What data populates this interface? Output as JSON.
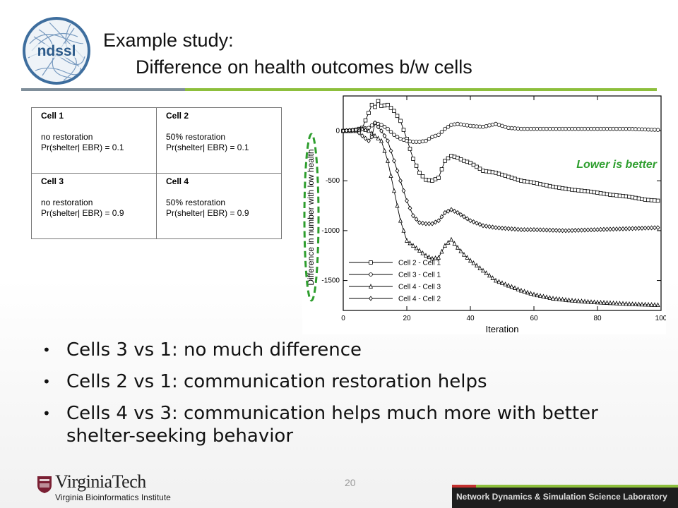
{
  "logo": {
    "text": "ndssl",
    "color": "#3e6e9e"
  },
  "title": {
    "line1": "Example study:",
    "line2": "Difference on health outcomes b/w cells"
  },
  "rule_colors": {
    "grey": "#7f8e9a",
    "green": "#8dbf3c"
  },
  "table": [
    [
      {
        "header": "Cell 1",
        "line1": "no restoration",
        "line2": "Pr(shelter| EBR) = 0.1"
      },
      {
        "header": "Cell 2",
        "line1": "50% restoration",
        "line2": "Pr(shelter| EBR) = 0.1"
      }
    ],
    [
      {
        "header": "Cell 3",
        "line1": "no restoration",
        "line2": "Pr(shelter| EBR) = 0.9"
      },
      {
        "header": "Cell 4",
        "line1": "50% restoration",
        "line2": "Pr(shelter| EBR) = 0.9"
      }
    ]
  ],
  "chart_data": {
    "type": "line",
    "xlabel": "Iteration",
    "ylabel": "Difference in number with low health",
    "xlim": [
      0,
      100
    ],
    "ylim": [
      -1800,
      350
    ],
    "xticks": [
      0,
      20,
      40,
      60,
      80,
      100
    ],
    "yticks": [
      0,
      -500,
      -1000,
      -1500
    ],
    "annotation": "Lower is better",
    "annotation_color": "#2e9e2e",
    "highlight_color": "#2e9e2e",
    "legend_position": "bottom-left",
    "series": [
      {
        "name": "Cell 2 - Cell 1",
        "marker": "square",
        "x": [
          0,
          2,
          4,
          6,
          8,
          9,
          10,
          11,
          12,
          14,
          16,
          18,
          20,
          22,
          24,
          26,
          28,
          30,
          32,
          34,
          36,
          38,
          40,
          44,
          48,
          52,
          56,
          60,
          66,
          72,
          78,
          84,
          90,
          95,
          99
        ],
        "y": [
          0,
          0,
          10,
          30,
          180,
          260,
          240,
          300,
          250,
          260,
          200,
          100,
          -80,
          -280,
          -420,
          -490,
          -500,
          -470,
          -300,
          -250,
          -270,
          -300,
          -320,
          -400,
          -420,
          -460,
          -500,
          -520,
          -560,
          -590,
          -610,
          -640,
          -660,
          -690,
          -700
        ]
      },
      {
        "name": "Cell 3 - Cell 1",
        "marker": "circle",
        "x": [
          0,
          4,
          8,
          10,
          12,
          14,
          16,
          18,
          20,
          22,
          24,
          26,
          28,
          30,
          32,
          34,
          36,
          40,
          44,
          48,
          52,
          56,
          60,
          70,
          80,
          90,
          99
        ],
        "y": [
          0,
          10,
          30,
          80,
          60,
          20,
          -40,
          -80,
          -100,
          -110,
          -110,
          -100,
          -60,
          -40,
          20,
          60,
          70,
          50,
          40,
          70,
          30,
          20,
          20,
          20,
          20,
          20,
          10
        ]
      },
      {
        "name": "Cell 4 - Cell 3",
        "marker": "triangle",
        "x": [
          0,
          4,
          6,
          8,
          10,
          12,
          14,
          16,
          18,
          20,
          22,
          24,
          26,
          28,
          30,
          32,
          34,
          36,
          38,
          40,
          44,
          48,
          52,
          56,
          60,
          66,
          72,
          78,
          84,
          90,
          99
        ],
        "y": [
          0,
          0,
          20,
          0,
          -50,
          -100,
          -300,
          -600,
          -900,
          -1100,
          -1150,
          -1200,
          -1250,
          -1280,
          -1270,
          -1150,
          -1090,
          -1170,
          -1240,
          -1300,
          -1400,
          -1500,
          -1550,
          -1600,
          -1640,
          -1680,
          -1700,
          -1715,
          -1725,
          -1735,
          -1745
        ]
      },
      {
        "name": "Cell 4 - Cell 2",
        "marker": "diamond",
        "x": [
          0,
          4,
          6,
          8,
          9,
          10,
          12,
          14,
          16,
          18,
          20,
          22,
          24,
          26,
          28,
          30,
          32,
          34,
          36,
          40,
          44,
          48,
          52,
          56,
          60,
          70,
          80,
          90,
          99
        ],
        "y": [
          0,
          10,
          -50,
          -100,
          -60,
          80,
          0,
          -100,
          -300,
          -500,
          -700,
          -850,
          -920,
          -930,
          -930,
          -900,
          -820,
          -790,
          -820,
          -900,
          -950,
          -970,
          -980,
          -990,
          -990,
          -1000,
          -990,
          -980,
          -970
        ]
      }
    ]
  },
  "bullets": [
    "Cells 3 vs 1: no much difference",
    "Cells 2 vs 1: communication restoration helps",
    "Cells 4 vs 3: communication helps much more with better shelter-seeking behavior"
  ],
  "page_number": "20",
  "footer": {
    "vt_name": "VirginiaTech",
    "vt_institute": "Virginia Bioinformatics Institute",
    "vt_color": "#7a1f33",
    "lab_name": "Network Dynamics & Simulation Science Laboratory",
    "lab_bar_colors": [
      "#c2312f",
      "#8dbf3c"
    ]
  }
}
